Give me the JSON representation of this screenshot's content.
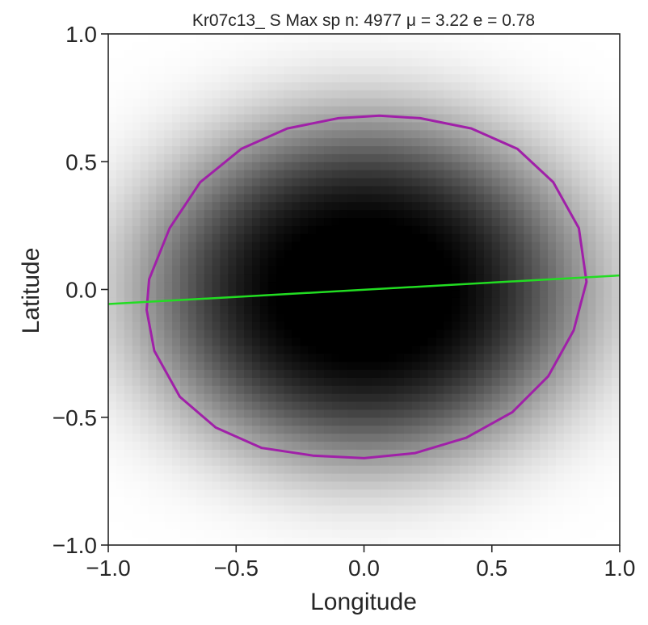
{
  "chart_data": {
    "type": "heatmap",
    "title": "Kr07c13_ S Max  sp n: 4977  μ =   3.22  e =   0.78",
    "xlabel": "Longitude",
    "ylabel": "Latitude",
    "xlim": [
      -1.0,
      1.0
    ],
    "ylim": [
      -1.0,
      1.0
    ],
    "xticks": [
      -1.0,
      -0.5,
      0.0,
      0.5,
      1.0
    ],
    "yticks": [
      -1.0,
      -0.5,
      0.0,
      0.5,
      1.0
    ],
    "xtick_labels": [
      "−1.0",
      "−0.5",
      "0.0",
      "0.5",
      "1.0"
    ],
    "ytick_labels": [
      "−1.0",
      "−0.5",
      "0.0",
      "0.5",
      "1.0"
    ],
    "grid": false,
    "colormap": "gray_r",
    "heatmap": {
      "bins": 64,
      "center": [
        0.0,
        0.0
      ],
      "sigma_x": 0.62,
      "sigma_y": 0.48,
      "max_density": 1.0
    },
    "contour": {
      "color": "#a020a8",
      "center": [
        0.01,
        0.01
      ],
      "x_points": [
        0.87,
        0.84,
        0.74,
        0.6,
        0.42,
        0.22,
        0.06,
        -0.1,
        -0.3,
        -0.48,
        -0.64,
        -0.76,
        -0.84,
        -0.85,
        -0.82,
        -0.72,
        -0.58,
        -0.4,
        -0.2,
        0.0,
        0.2,
        0.4,
        0.58,
        0.72,
        0.82,
        0.87
      ],
      "y_points": [
        0.03,
        0.24,
        0.42,
        0.55,
        0.63,
        0.67,
        0.68,
        0.67,
        0.63,
        0.55,
        0.42,
        0.24,
        0.04,
        -0.08,
        -0.24,
        -0.42,
        -0.54,
        -0.62,
        -0.65,
        -0.66,
        -0.64,
        -0.58,
        -0.48,
        -0.34,
        -0.16,
        0.03
      ]
    },
    "fit_line": {
      "color": "#22dd22",
      "x": [
        -1.0,
        1.0
      ],
      "y": [
        -0.057,
        0.055
      ]
    }
  }
}
